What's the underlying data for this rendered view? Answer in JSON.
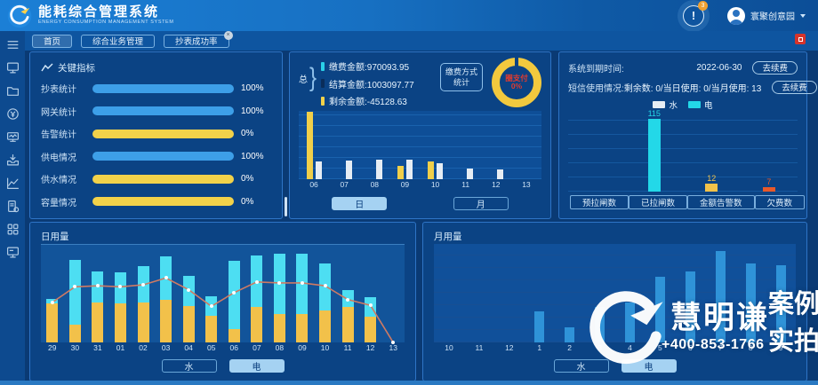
{
  "header": {
    "title": "能耗综合管理系统",
    "subtitle": "ENERGY CONSUMPTION MANAGEMENT SYSTEM",
    "notification_badge": "3",
    "user_name": "寰聚创意园"
  },
  "tabs": [
    {
      "label": "首页",
      "active": true,
      "closable": false
    },
    {
      "label": "综合业务管理",
      "active": false,
      "closable": false
    },
    {
      "label": "抄表成功率",
      "active": false,
      "closable": true
    }
  ],
  "sidebar": {
    "icons": [
      "menu-icon",
      "monitor-icon",
      "folder-icon",
      "money-refresh-icon",
      "screen-wave-icon",
      "inbox-download-icon",
      "line-chart-icon",
      "document-gear-icon",
      "grid-icon",
      "terminal-icon"
    ]
  },
  "key_indicators": {
    "title": "关键指标",
    "rows": [
      {
        "label": "抄表统计",
        "value": "100%",
        "color": "#3d9fe8"
      },
      {
        "label": "网关统计",
        "value": "100%",
        "color": "#3d9fe8"
      },
      {
        "label": "告警统计",
        "value": "0%",
        "color": "#f2d24a"
      },
      {
        "label": "供电情况",
        "value": "100%",
        "color": "#3d9fe8"
      },
      {
        "label": "供水情况",
        "value": "0%",
        "color": "#f2d24a"
      },
      {
        "label": "容量情况",
        "value": "0%",
        "color": "#f2d24a"
      }
    ]
  },
  "payment_panel": {
    "group_label": "总",
    "stats": [
      {
        "label": "缴费金额",
        "value": "970093.95",
        "bullet": "#2ad0e8"
      },
      {
        "label": "结算金额",
        "value": "1003097.77",
        "bullet": "#0a2d5a"
      },
      {
        "label": "剩余金额",
        "value": "-45128.63",
        "bullet": "#f2d24a"
      }
    ],
    "method_label": "缴费方式统计",
    "donut": {
      "label": "圈支付",
      "value": "0%",
      "ring_color": "#f2c93e",
      "text_color": "#e23b2e"
    },
    "period_buttons": [
      {
        "label": "日",
        "active": true
      },
      {
        "label": "月",
        "active": false
      }
    ]
  },
  "system_panel": {
    "expire_label": "系统到期时间:",
    "expire_value": "2022-06-30",
    "renew_label": "去续费",
    "sms_label": "短信使用情况:",
    "sms_value": "剩余数: 0/当日使用: 0/当月使用: 13",
    "legend": [
      {
        "label": "水",
        "color": "#e6edf4"
      },
      {
        "label": "电",
        "color": "#23d8e8"
      }
    ],
    "bottom_buttons": [
      "预拉闸数",
      "已拉闸数",
      "金额告警数",
      "欠费数"
    ]
  },
  "daily_panel": {
    "title": "日用量",
    "buttons": [
      {
        "label": "水",
        "active": false
      },
      {
        "label": "电",
        "active": true
      }
    ]
  },
  "monthly_panel": {
    "title": "月用量",
    "buttons": [
      {
        "label": "水",
        "active": false
      },
      {
        "label": "电",
        "active": true
      }
    ]
  },
  "watermark": {
    "brand": "慧明谦",
    "phone": "+400-853-1766",
    "tag_line1": "案例",
    "tag_line2": "实拍"
  },
  "chart_data": [
    {
      "id": "payment_by_day",
      "type": "grouped",
      "categories": [
        "06",
        "07",
        "08",
        "09",
        "10",
        "11",
        "12",
        "13"
      ],
      "series": [
        {
          "name": "yellow-series",
          "color": "#f0cf4a",
          "values": [
            99,
            0,
            0,
            19,
            26,
            0,
            0,
            0
          ]
        },
        {
          "name": "white-series",
          "color": "#e6edf4",
          "values": [
            26,
            27,
            28,
            28,
            24,
            16,
            14,
            0
          ]
        }
      ],
      "ymax": 100,
      "ylim": [
        0,
        100
      ],
      "grid": true
    },
    {
      "id": "alarm_counts",
      "type": "bar",
      "categories": [
        "预拉闸数",
        "已拉闸数",
        "金额告警数",
        "欠费数"
      ],
      "values": [
        0,
        115,
        12,
        7
      ],
      "colors": [
        "#23d8e8",
        "#23d8e8",
        "#f2c24a",
        "#e8592a"
      ],
      "ymax": 125,
      "ylim": [
        0,
        125
      ],
      "show_values": true,
      "show_xlabels": false,
      "grid": true
    },
    {
      "id": "daily_usage",
      "type": "stacked",
      "title": "日用量",
      "categories": [
        "29",
        "30",
        "31",
        "01",
        "02",
        "03",
        "04",
        "05",
        "06",
        "07",
        "08",
        "09",
        "10",
        "11",
        "12",
        "13"
      ],
      "series": [
        {
          "name": "yellow-series",
          "color": "#f2c14a",
          "values": [
            40,
            18,
            41,
            40,
            41,
            44,
            37,
            27,
            14,
            36,
            29,
            29,
            33,
            36,
            26,
            0
          ]
        },
        {
          "name": "cyan-series",
          "color": "#4ddef2",
          "values": [
            5,
            67,
            32,
            32,
            37,
            44,
            31,
            20,
            70,
            53,
            62,
            62,
            48,
            18,
            20,
            0
          ]
        }
      ],
      "line": {
        "color": "#cf7a63",
        "values": [
          41,
          57,
          58,
          57,
          59,
          66,
          54,
          37,
          51,
          62,
          61,
          61,
          58,
          44,
          38,
          0
        ]
      },
      "ymax": 100,
      "ylim": [
        0,
        100
      ]
    },
    {
      "id": "monthly_usage",
      "type": "bar",
      "title": "月用量",
      "categories": [
        "10",
        "11",
        "12",
        "1",
        "2",
        "3",
        "4",
        "5",
        "6",
        "7",
        "8",
        "9"
      ],
      "values": [
        0,
        0,
        0,
        33,
        16,
        38,
        43,
        70,
        76,
        97,
        84,
        82
      ],
      "color": "#2f93d8",
      "ymax": 105,
      "ylim": [
        0,
        105
      ],
      "grid": true
    }
  ]
}
